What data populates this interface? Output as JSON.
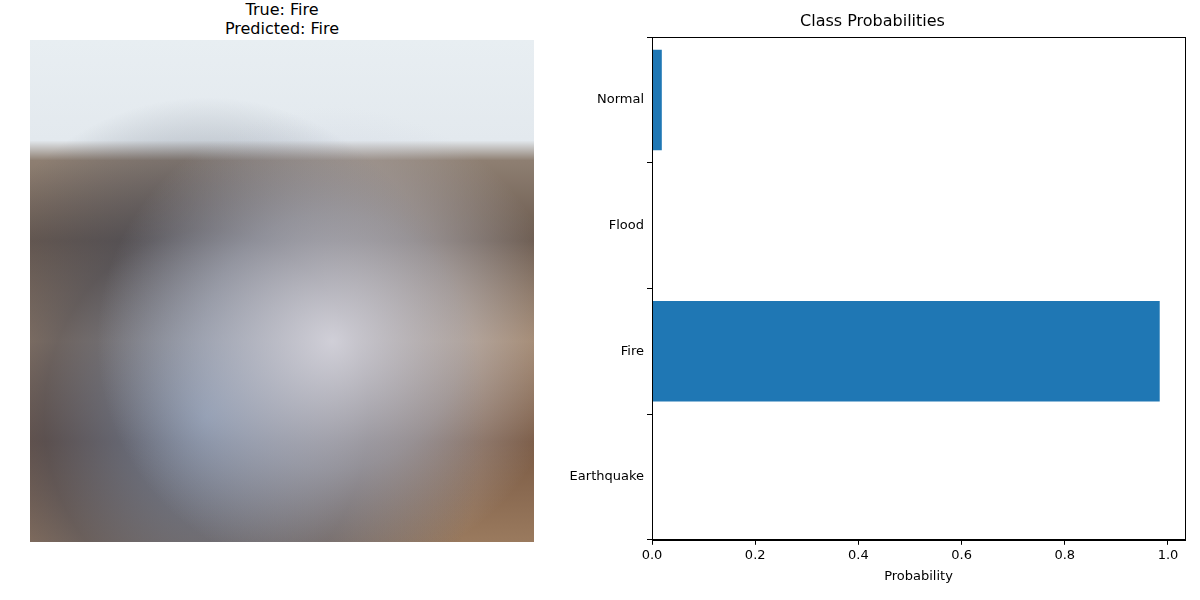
{
  "image_title": [
    "True: Fire",
    "Predicted: Fire"
  ],
  "chart_data": {
    "type": "bar",
    "orientation": "horizontal",
    "title": "Class Probabilities",
    "x_label": "Probability",
    "categories": [
      "Earthquake",
      "Fire",
      "Flood",
      "Normal"
    ],
    "values": [
      0.001,
      0.984,
      0.0005,
      0.019
    ],
    "color": "#1f77b4",
    "xlim": [
      0,
      1.033
    ],
    "xticks": [
      {
        "value": 0,
        "label": "0.0"
      },
      0.2,
      0.4,
      0.6,
      0.8,
      {
        "value": 1,
        "label": "1.0"
      }
    ],
    "grid": false,
    "legend": false
  }
}
